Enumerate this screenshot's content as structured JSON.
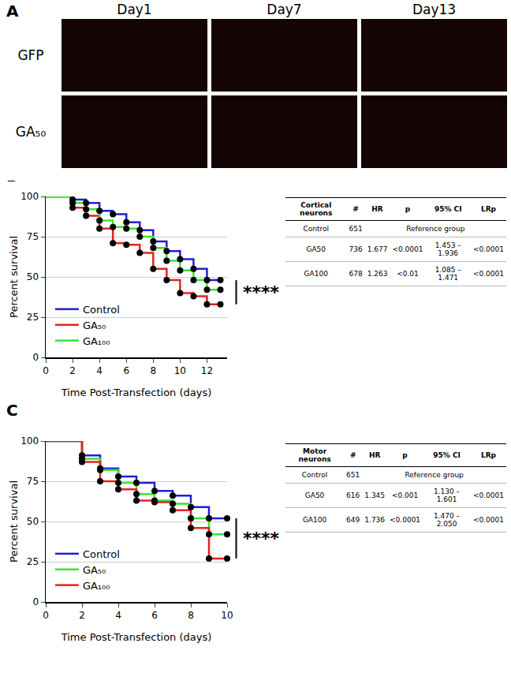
{
  "panel_labels": [
    "A",
    "B",
    "C"
  ],
  "panel_a": {
    "columns": [
      "Day1",
      "Day7",
      "Day13"
    ],
    "rows": [
      "GFP",
      "GA₅₀"
    ]
  },
  "chart_data": [
    {
      "type": "line",
      "x_label": "Time Post-Transfection (days)",
      "y_label": "Percent survival",
      "x": [
        0,
        2,
        3,
        4,
        5,
        6,
        7,
        8,
        9,
        10,
        11,
        12,
        13
      ],
      "series": [
        {
          "name": "Control",
          "color": "#1f1fd6",
          "values": [
            100,
            98,
            96,
            91,
            89,
            84,
            79,
            72,
            66,
            61,
            55,
            48,
            48
          ]
        },
        {
          "name": "GA₅₀",
          "color": "#e8211c",
          "values": [
            100,
            93,
            88,
            80,
            71,
            70,
            65,
            55,
            48,
            40,
            38,
            33,
            33
          ]
        },
        {
          "name": "GA₁₀₀",
          "color": "#33e633",
          "values": [
            100,
            96,
            92,
            85,
            81,
            80,
            75,
            68,
            60,
            54,
            48,
            42,
            42
          ]
        }
      ],
      "xlim": [
        0,
        13.5
      ],
      "xticks": [
        0,
        2,
        4,
        6,
        8,
        10,
        12
      ],
      "ylim": [
        0,
        100
      ],
      "yticks": [
        0,
        25,
        50,
        75,
        100
      ],
      "grid": true,
      "legend": "lower left",
      "line_style": "step",
      "marker": "circle",
      "annotations": [
        "****"
      ],
      "table": {
        "header": [
          "Cortical neurons",
          "#",
          "HR",
          "p",
          "95% CI",
          "LRp"
        ],
        "rows": [
          [
            "Control",
            "651",
            "Reference group"
          ],
          [
            "GA50",
            "736",
            "1.677",
            "<0.0001",
            "1.453 – 1.936",
            "<0.0001"
          ],
          [
            "GA100",
            "678",
            "1.263",
            "<0.01",
            "1.085 – 1.471",
            "<0.0001"
          ]
        ]
      }
    },
    {
      "type": "line",
      "x_label": "Time Post-Transfection (days)",
      "y_label": "Percent survival",
      "x": [
        0,
        2,
        3,
        4,
        5,
        6,
        7,
        8,
        9,
        10
      ],
      "series": [
        {
          "name": "Control",
          "color": "#1f1fd6",
          "values": [
            100,
            91,
            83,
            78,
            74,
            69,
            66,
            59,
            52,
            52
          ]
        },
        {
          "name": "GA₅₀",
          "color": "#33e633",
          "values": [
            100,
            89,
            82,
            74,
            67,
            63,
            61,
            52,
            42,
            42
          ]
        },
        {
          "name": "GA₁₀₀",
          "color": "#e8211c",
          "values": [
            100,
            87,
            75,
            70,
            63,
            62,
            57,
            46,
            27,
            27
          ]
        }
      ],
      "xlim": [
        0,
        10
      ],
      "xticks": [
        0,
        2,
        4,
        6,
        8,
        10
      ],
      "ylim": [
        0,
        100
      ],
      "yticks": [
        0,
        25,
        50,
        75,
        100
      ],
      "grid": true,
      "legend": "lower left",
      "line_style": "step",
      "marker": "circle",
      "annotations": [
        "****"
      ],
      "table": {
        "header": [
          "Motor neurons",
          "#",
          "HR",
          "p",
          "95% CI",
          "LRp"
        ],
        "rows": [
          [
            "Control",
            "651",
            "Reference group"
          ],
          [
            "GA50",
            "616",
            "1.345",
            "<0.001",
            "1.130 – 1.601",
            "<0.0001"
          ],
          [
            "GA100",
            "649",
            "1.736",
            "<0.0001",
            "1.470 – 2.050",
            "<0.0001"
          ]
        ]
      }
    }
  ]
}
